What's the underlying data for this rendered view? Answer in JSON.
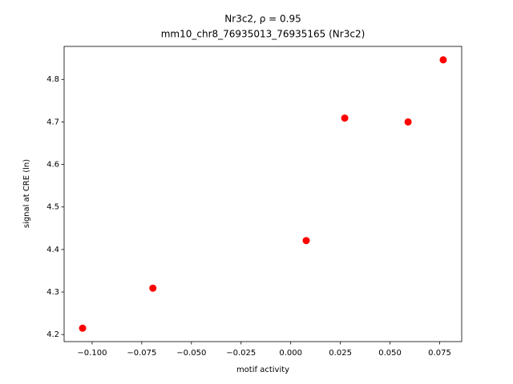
{
  "chart_data": {
    "type": "scatter",
    "title": "Nr3c2, ρ = 0.95",
    "subtitle": "mm10_chr8_76935013_76935165 (Nr3c2)",
    "xlabel": "motif activity",
    "ylabel": "signal at CRE (ln)",
    "x": [
      -0.1048,
      -0.0694,
      0.0078,
      0.0272,
      0.0591,
      0.0768
    ],
    "values": [
      4.215,
      4.309,
      4.421,
      4.709,
      4.7,
      4.846
    ],
    "color": "#ff0000",
    "xlim": [
      -0.1141,
      0.0861
    ],
    "ylim": [
      4.1834,
      4.8776
    ],
    "xticks": [
      {
        "value": -0.1,
        "label": "−0.100"
      },
      {
        "value": -0.075,
        "label": "−0.075"
      },
      {
        "value": -0.05,
        "label": "−0.050"
      },
      {
        "value": -0.025,
        "label": "−0.025"
      },
      {
        "value": 0,
        "label": "0.000"
      },
      0.025,
      {
        "value": 0.05,
        "label": "0.050"
      },
      0.075
    ],
    "yticks": [
      {
        "value": 4.2,
        "label": "4.2"
      },
      4.3,
      4.4,
      4.5,
      4.6,
      4.7,
      4.8
    ]
  }
}
